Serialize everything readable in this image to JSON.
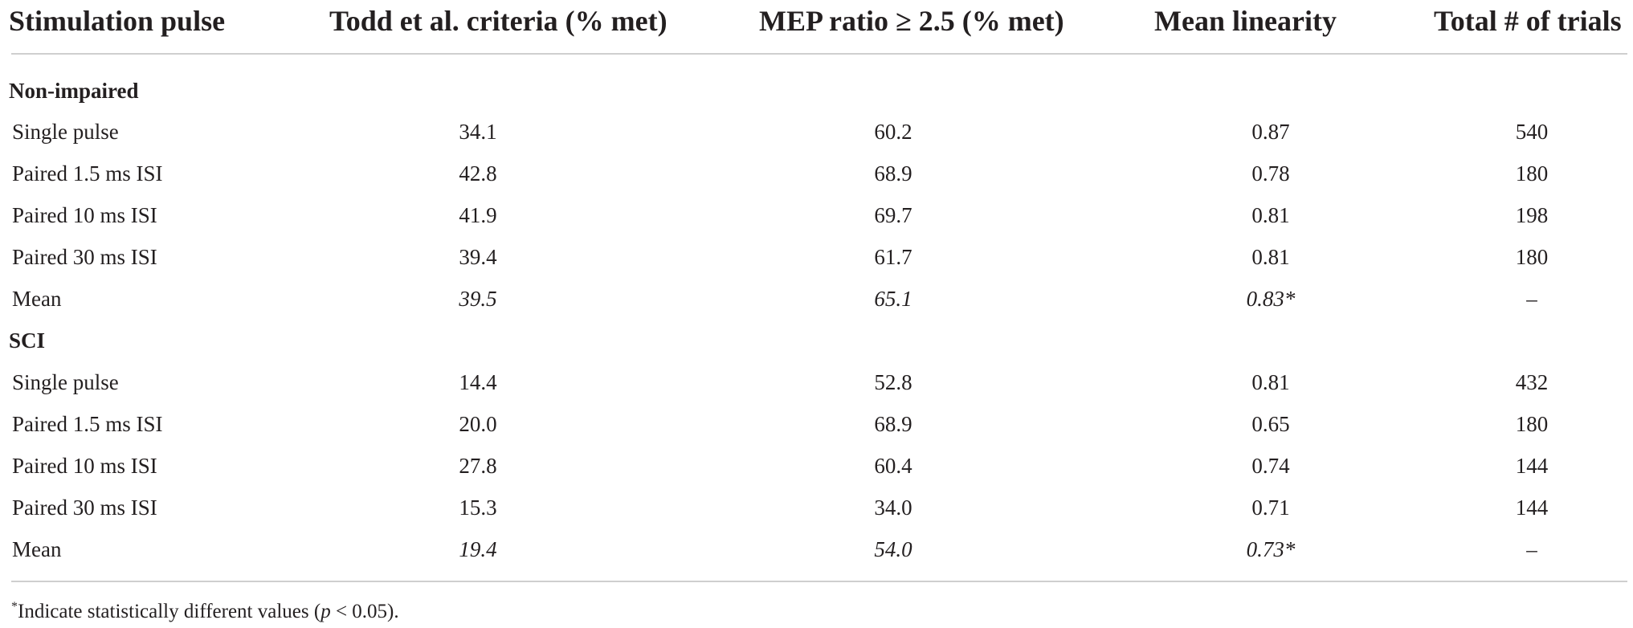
{
  "headers": [
    "Stimulation pulse",
    "Todd et al. criteria (% met)",
    "MEP ratio ≥ 2.5 (% met)",
    "Mean linearity",
    "Total # of trials"
  ],
  "groups": [
    {
      "name": "Non-impaired",
      "rows": [
        {
          "label": "Single pulse",
          "todd": "34.1",
          "mep": "60.2",
          "linearity": "0.87",
          "trials": "540"
        },
        {
          "label": "Paired 1.5 ms ISI",
          "todd": "42.8",
          "mep": "68.9",
          "linearity": "0.78",
          "trials": "180"
        },
        {
          "label": "Paired 10 ms ISI",
          "todd": "41.9",
          "mep": "69.7",
          "linearity": "0.81",
          "trials": "198"
        },
        {
          "label": "Paired 30 ms ISI",
          "todd": "39.4",
          "mep": "61.7",
          "linearity": "0.81",
          "trials": "180"
        },
        {
          "label": "Mean",
          "todd": "39.5",
          "mep": "65.1",
          "linearity": "0.83*",
          "trials": "–"
        }
      ]
    },
    {
      "name": "SCI",
      "rows": [
        {
          "label": "Single pulse",
          "todd": "14.4",
          "mep": "52.8",
          "linearity": "0.81",
          "trials": "432"
        },
        {
          "label": "Paired 1.5 ms ISI",
          "todd": "20.0",
          "mep": "68.9",
          "linearity": "0.65",
          "trials": "180"
        },
        {
          "label": "Paired 10 ms ISI",
          "todd": "27.8",
          "mep": "60.4",
          "linearity": "0.74",
          "trials": "144"
        },
        {
          "label": "Paired 30 ms ISI",
          "todd": "15.3",
          "mep": "34.0",
          "linearity": "0.71",
          "trials": "144"
        },
        {
          "label": "Mean",
          "todd": "19.4",
          "mep": "54.0",
          "linearity": "0.73*",
          "trials": "–"
        }
      ]
    }
  ],
  "footnote": {
    "marker": "*",
    "text_before": "Indicate statistically different values (",
    "variable": "p",
    "text_after": " < 0.05)."
  }
}
